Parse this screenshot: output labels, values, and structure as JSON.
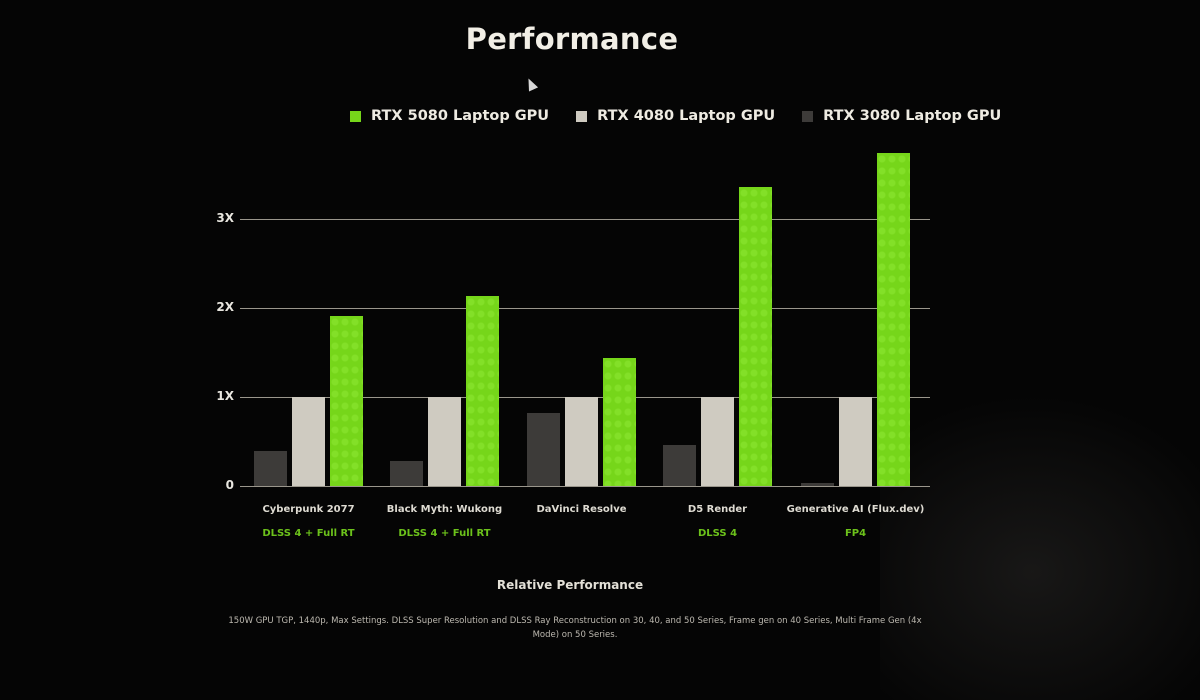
{
  "title": "Performance",
  "legend": [
    {
      "label": "RTX 5080 Laptop GPU",
      "color": "#76d61a"
    },
    {
      "label": "RTX 4080 Laptop GPU",
      "color": "#cfcbc1"
    },
    {
      "label": "RTX 3080 Laptop GPU",
      "color": "#3d3b39"
    }
  ],
  "y_axis": {
    "ticks": [
      "0",
      "1X",
      "2X",
      "3X"
    ]
  },
  "categories": [
    {
      "name": "Cyberpunk 2077",
      "note": "DLSS 4 + Full RT"
    },
    {
      "name": "Black Myth: Wukong",
      "note": "DLSS 4 + Full RT"
    },
    {
      "name": "DaVinci Resolve",
      "note": ""
    },
    {
      "name": "D5 Render",
      "note": "DLSS 4"
    },
    {
      "name": "Generative AI (Flux.dev)",
      "note": "FP4"
    }
  ],
  "xlabel": "Relative Performance",
  "footnote": "150W GPU TGP, 1440p, Max Settings. DLSS Super Resolution and DLSS Ray Reconstruction on 30, 40, and 50 Series, Frame gen on 40 Series, Multi Frame Gen (4x Mode) on 50 Series.",
  "chart_data": {
    "type": "bar",
    "title": "Performance",
    "xlabel": "Relative Performance",
    "ylabel": "",
    "categories": [
      "Cyberpunk 2077",
      "Black Myth: Wukong",
      "DaVinci Resolve",
      "D5 Render",
      "Generative AI (Flux.dev)"
    ],
    "category_notes": [
      "DLSS 4 + Full RT",
      "DLSS 4 + Full RT",
      "",
      "DLSS 4",
      "FP4"
    ],
    "series": [
      {
        "name": "RTX 3080 Laptop GPU",
        "color": "#3d3b39",
        "values": [
          0.39,
          0.28,
          0.82,
          0.46,
          0.03
        ]
      },
      {
        "name": "RTX 4080 Laptop GPU",
        "color": "#cfcbc1",
        "values": [
          1.0,
          1.0,
          1.0,
          1.0,
          1.0
        ]
      },
      {
        "name": "RTX 5080 Laptop GPU",
        "color": "#76d61a",
        "values": [
          1.91,
          2.13,
          1.44,
          3.36,
          3.74
        ]
      }
    ],
    "yticks": [
      "0",
      "1X",
      "2X",
      "3X"
    ],
    "ylim": [
      0,
      3.8
    ],
    "grid": true,
    "legend_position": "top",
    "footnote": "150W GPU TGP, 1440p, Max Settings. DLSS Super Resolution and DLSS Ray Reconstruction on 30, 40, and 50 Series, Frame gen on 40 Series, Multi Frame Gen (4x Mode) on 50 Series."
  }
}
